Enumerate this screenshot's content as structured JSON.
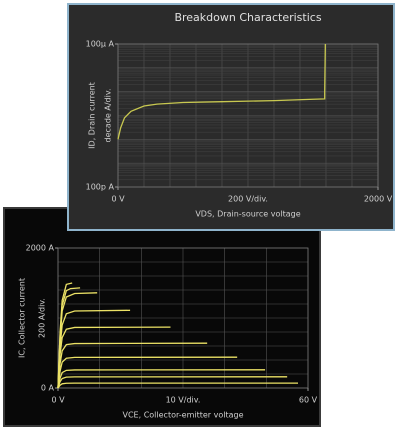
{
  "chart_data": [
    {
      "type": "line",
      "title": "Breakdown Characteristics",
      "y_label": "ID, Drain current",
      "y_div_label": "decade A/div.",
      "x_label": "VDS, Drain-source voltage",
      "x_div_label": "200 V/div.",
      "log_y": true,
      "grid": true,
      "xlim": [
        0,
        2000
      ],
      "ylim": [
        1e-10,
        0.0001
      ],
      "xticks": [
        {
          "value": 0,
          "label": "0 V"
        },
        {
          "value": 2000,
          "label": "2000 V"
        }
      ],
      "yticks": [
        {
          "value": 1e-10,
          "label": "100p A"
        },
        {
          "value": 0.0001,
          "label": "100μ A"
        }
      ],
      "series": [
        {
          "color": "#c8c850",
          "x": [
            0,
            20,
            50,
            100,
            200,
            300,
            500,
            800,
            1200,
            1500,
            1590,
            1590,
            1595
          ],
          "values": [
            1e-08,
            3e-08,
            8e-08,
            1.5e-07,
            2.5e-07,
            3e-07,
            3.5e-07,
            3.8e-07,
            4.2e-07,
            4.8e-07,
            5e-07,
            1e-06,
            0.0001
          ]
        }
      ]
    },
    {
      "type": "line",
      "y_label": "IC, Collector current",
      "y_div_label": "200 A/div.",
      "x_label": "VCE, Collector-emitter voltage",
      "x_div_label": "10 V/div.",
      "log_y": false,
      "grid": true,
      "xlim": [
        0,
        60
      ],
      "ylim": [
        0,
        2000
      ],
      "xticks": [
        {
          "value": 0,
          "label": "0 V"
        },
        {
          "value": 60,
          "label": "60 V"
        }
      ],
      "yticks": [
        {
          "value": 0,
          "label": "0 A"
        },
        {
          "value": 2000,
          "label": "2000 A"
        }
      ],
      "series": [
        {
          "color": "#ece266",
          "x": [
            0,
            0.5,
            1,
            2,
            3.4
          ],
          "values": [
            0,
            800,
            1250,
            1480,
            1500
          ]
        },
        {
          "color": "#ece266",
          "x": [
            0,
            0.5,
            1,
            2,
            3,
            5.3
          ],
          "values": [
            0,
            750,
            1180,
            1390,
            1420,
            1430
          ]
        },
        {
          "color": "#ece266",
          "x": [
            0,
            0.5,
            1,
            2,
            4,
            9.4
          ],
          "values": [
            0,
            700,
            1100,
            1300,
            1350,
            1360
          ]
        },
        {
          "color": "#ece266",
          "x": [
            0,
            0.5,
            1,
            2,
            4,
            17.3
          ],
          "values": [
            0,
            600,
            900,
            1060,
            1100,
            1110
          ]
        },
        {
          "color": "#ece266",
          "x": [
            0,
            0.5,
            1,
            2,
            4,
            27
          ],
          "values": [
            0,
            480,
            720,
            840,
            865,
            870
          ]
        },
        {
          "color": "#ece266",
          "x": [
            0,
            0.5,
            1,
            2,
            4,
            35.8
          ],
          "values": [
            0,
            350,
            530,
            620,
            635,
            640
          ]
        },
        {
          "color": "#ece266",
          "x": [
            0,
            0.5,
            1,
            2,
            4,
            43
          ],
          "values": [
            0,
            240,
            370,
            425,
            438,
            440
          ]
        },
        {
          "color": "#ece266",
          "x": [
            0,
            0.5,
            1,
            2,
            4,
            49.7
          ],
          "values": [
            0,
            140,
            220,
            252,
            258,
            260
          ]
        },
        {
          "color": "#ece266",
          "x": [
            0,
            0.5,
            1,
            2,
            4,
            55
          ],
          "values": [
            0,
            90,
            135,
            155,
            159,
            160
          ]
        },
        {
          "color": "#ece266",
          "x": [
            0,
            0.5,
            1,
            2,
            4,
            57.6
          ],
          "values": [
            0,
            40,
            60,
            68,
            70,
            70
          ]
        }
      ]
    }
  ]
}
